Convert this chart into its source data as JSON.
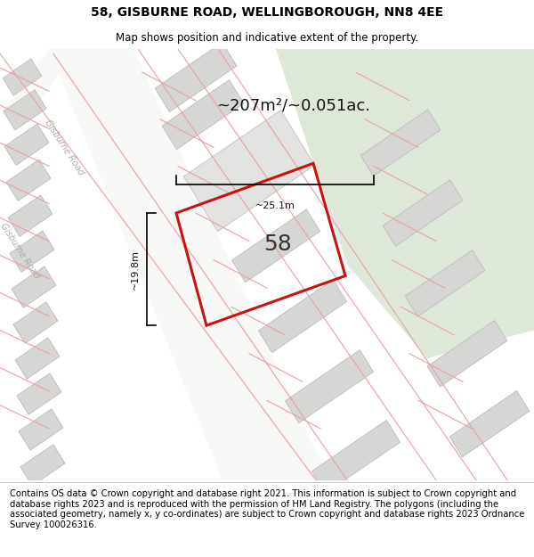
{
  "title": "58, GISBURNE ROAD, WELLINGBOROUGH, NN8 4EE",
  "subtitle": "Map shows position and indicative extent of the property.",
  "footer": "Contains OS data © Crown copyright and database right 2021. This information is subject to Crown copyright and database rights 2023 and is reproduced with the permission of HM Land Registry. The polygons (including the associated geometry, namely x, y co-ordinates) are subject to Crown copyright and database rights 2023 Ordnance Survey 100026316.",
  "area_label": "~207m²/~0.051ac.",
  "number_label": "58",
  "dim_vertical": "~19.8m",
  "dim_horizontal": "~25.1m",
  "road_label_1": "Gisburne Road",
  "road_label_2": "Gisburne Road",
  "map_bg": "#f0efed",
  "bg_green": "#dde8d9",
  "building_fill": "#d6d6d4",
  "building_edge": "#bbbbbb",
  "road_fill": "#f8f8f6",
  "plot_color": "#cc1111",
  "dim_color": "#111111",
  "red_line": "#e8a0a0",
  "title_fontsize": 10,
  "subtitle_fontsize": 8.5,
  "footer_fontsize": 7.2,
  "area_fontsize": 13,
  "number_fontsize": 18,
  "dim_fontsize": 8
}
